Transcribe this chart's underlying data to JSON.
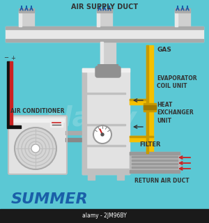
{
  "bg_color": "#5bc8d4",
  "title_text": "AIR SUPPLY DUCT",
  "summer_text": "SUMMER",
  "summer_color": "#1a5fa8",
  "bottom_text": "alamy - 2JM96BY",
  "labels": {
    "gas": "GAS",
    "evaporator": "EVAPORATOR\nCOIL UNIT",
    "heat_exchanger": "HEAT\nEXCHANGER\nUNIT",
    "filter": "FILTER",
    "return_air": "RETURN AIR DUCT",
    "air_conditioner": "AIR CONDITIONER"
  },
  "duct_color": "#d0d0d0",
  "duct_dark": "#aaaaaa",
  "duct_light": "#e8e8e8",
  "pipe_gray": "#909090",
  "unit_color": "#e2e2e2",
  "unit_shadow": "#c0c0c0",
  "unit_highlight": "#f0f0f0",
  "gas_pipe_color": "#f5c000",
  "gas_pipe_dark": "#c89a00",
  "blue_arrow_color": "#1a5fa8",
  "red_arrow_color": "#cc2222",
  "black_color": "#1a1a1a",
  "red_therm": "#cc2222",
  "bottom_bar": "#1a1a1a"
}
